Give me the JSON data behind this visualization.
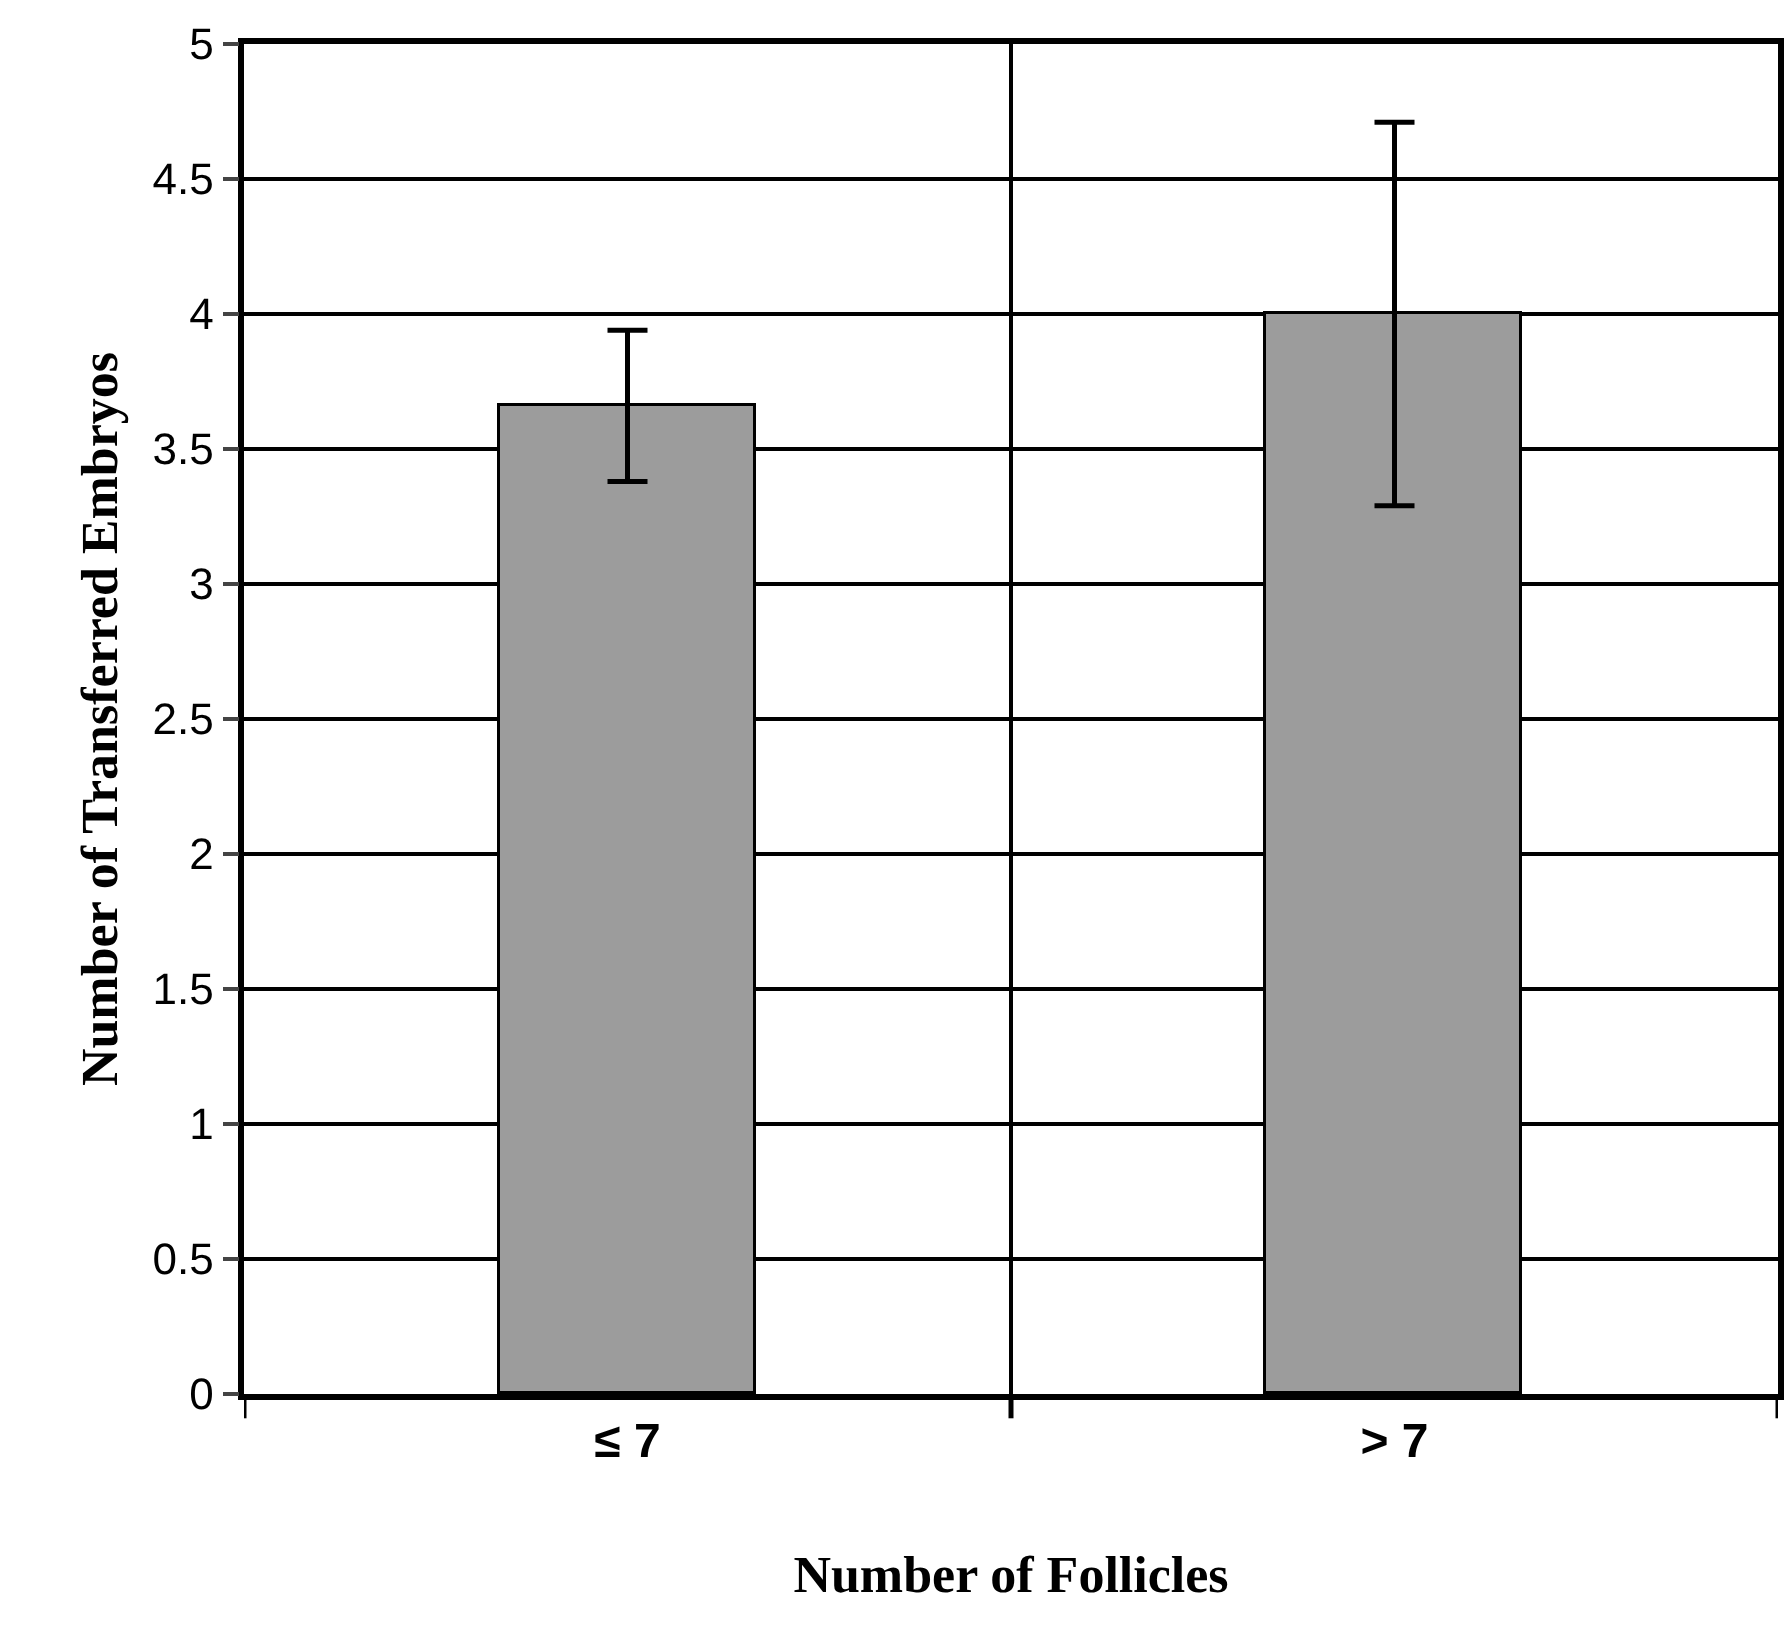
{
  "chart_data": {
    "type": "bar",
    "xlabel": "Number of Follicles",
    "ylabel": "Number of Transferred Embryos",
    "categories": [
      "≤ 7",
      "> 7"
    ],
    "series": [
      {
        "color": "#9c9c9c",
        "values": [
          3.66,
          4.0
        ],
        "errors": [
          0.28,
          0.71
        ]
      }
    ],
    "ylim": [
      0,
      5
    ],
    "yticks": [
      0,
      0.5,
      1,
      1.5,
      2,
      2.5,
      3,
      3.5,
      4,
      4.5,
      5
    ],
    "grid": true
  }
}
